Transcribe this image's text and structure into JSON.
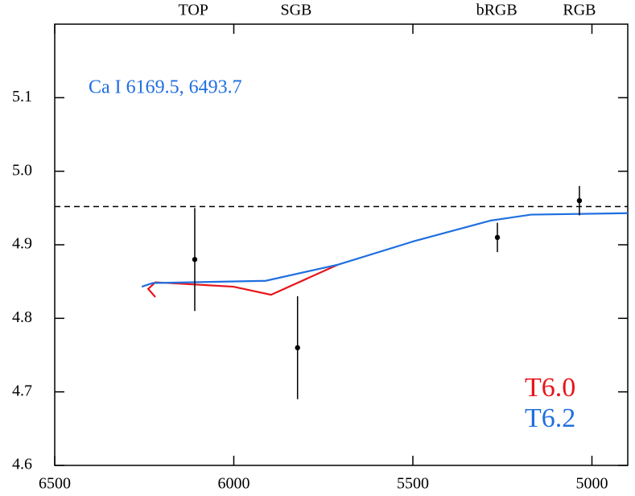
{
  "chart_data": {
    "type": "line",
    "annotation": "Ca I 6169.5, 6493.7",
    "annotation_color": "#1f6fe0",
    "xlim": [
      6500,
      4900
    ],
    "xticks": [
      6500,
      6000,
      5500,
      5000
    ],
    "ylim": [
      4.6,
      5.2
    ],
    "yticks": [
      4.6,
      4.7,
      4.8,
      4.9,
      5.0,
      5.1
    ],
    "reference_line": 4.952,
    "phase_labels": [
      {
        "label": "TOP",
        "x": 6113
      },
      {
        "label": "SGB",
        "x": 5826
      },
      {
        "label": "bRGB",
        "x": 5266
      },
      {
        "label": "RGB",
        "x": 5035
      }
    ],
    "series": [
      {
        "name": "T6.0",
        "color": "#e8141a",
        "x": [
          6219,
          6239,
          6219,
          6001,
          5896,
          5709
        ],
        "values": [
          4.829,
          4.84,
          4.849,
          4.843,
          4.832,
          4.873
        ]
      },
      {
        "name": "T6.2",
        "color": "#1f6fe0",
        "x": [
          6257,
          6226,
          5911,
          5709,
          5496,
          5282,
          5170,
          4900
        ],
        "values": [
          4.843,
          4.848,
          4.851,
          4.873,
          4.905,
          4.933,
          4.941,
          4.943
        ]
      }
    ],
    "observations": {
      "x": [
        6109,
        5822,
        5264,
        5035
      ],
      "values": [
        4.88,
        4.76,
        4.91,
        4.96
      ],
      "errors": [
        0.07,
        0.07,
        0.02,
        0.02
      ]
    }
  }
}
